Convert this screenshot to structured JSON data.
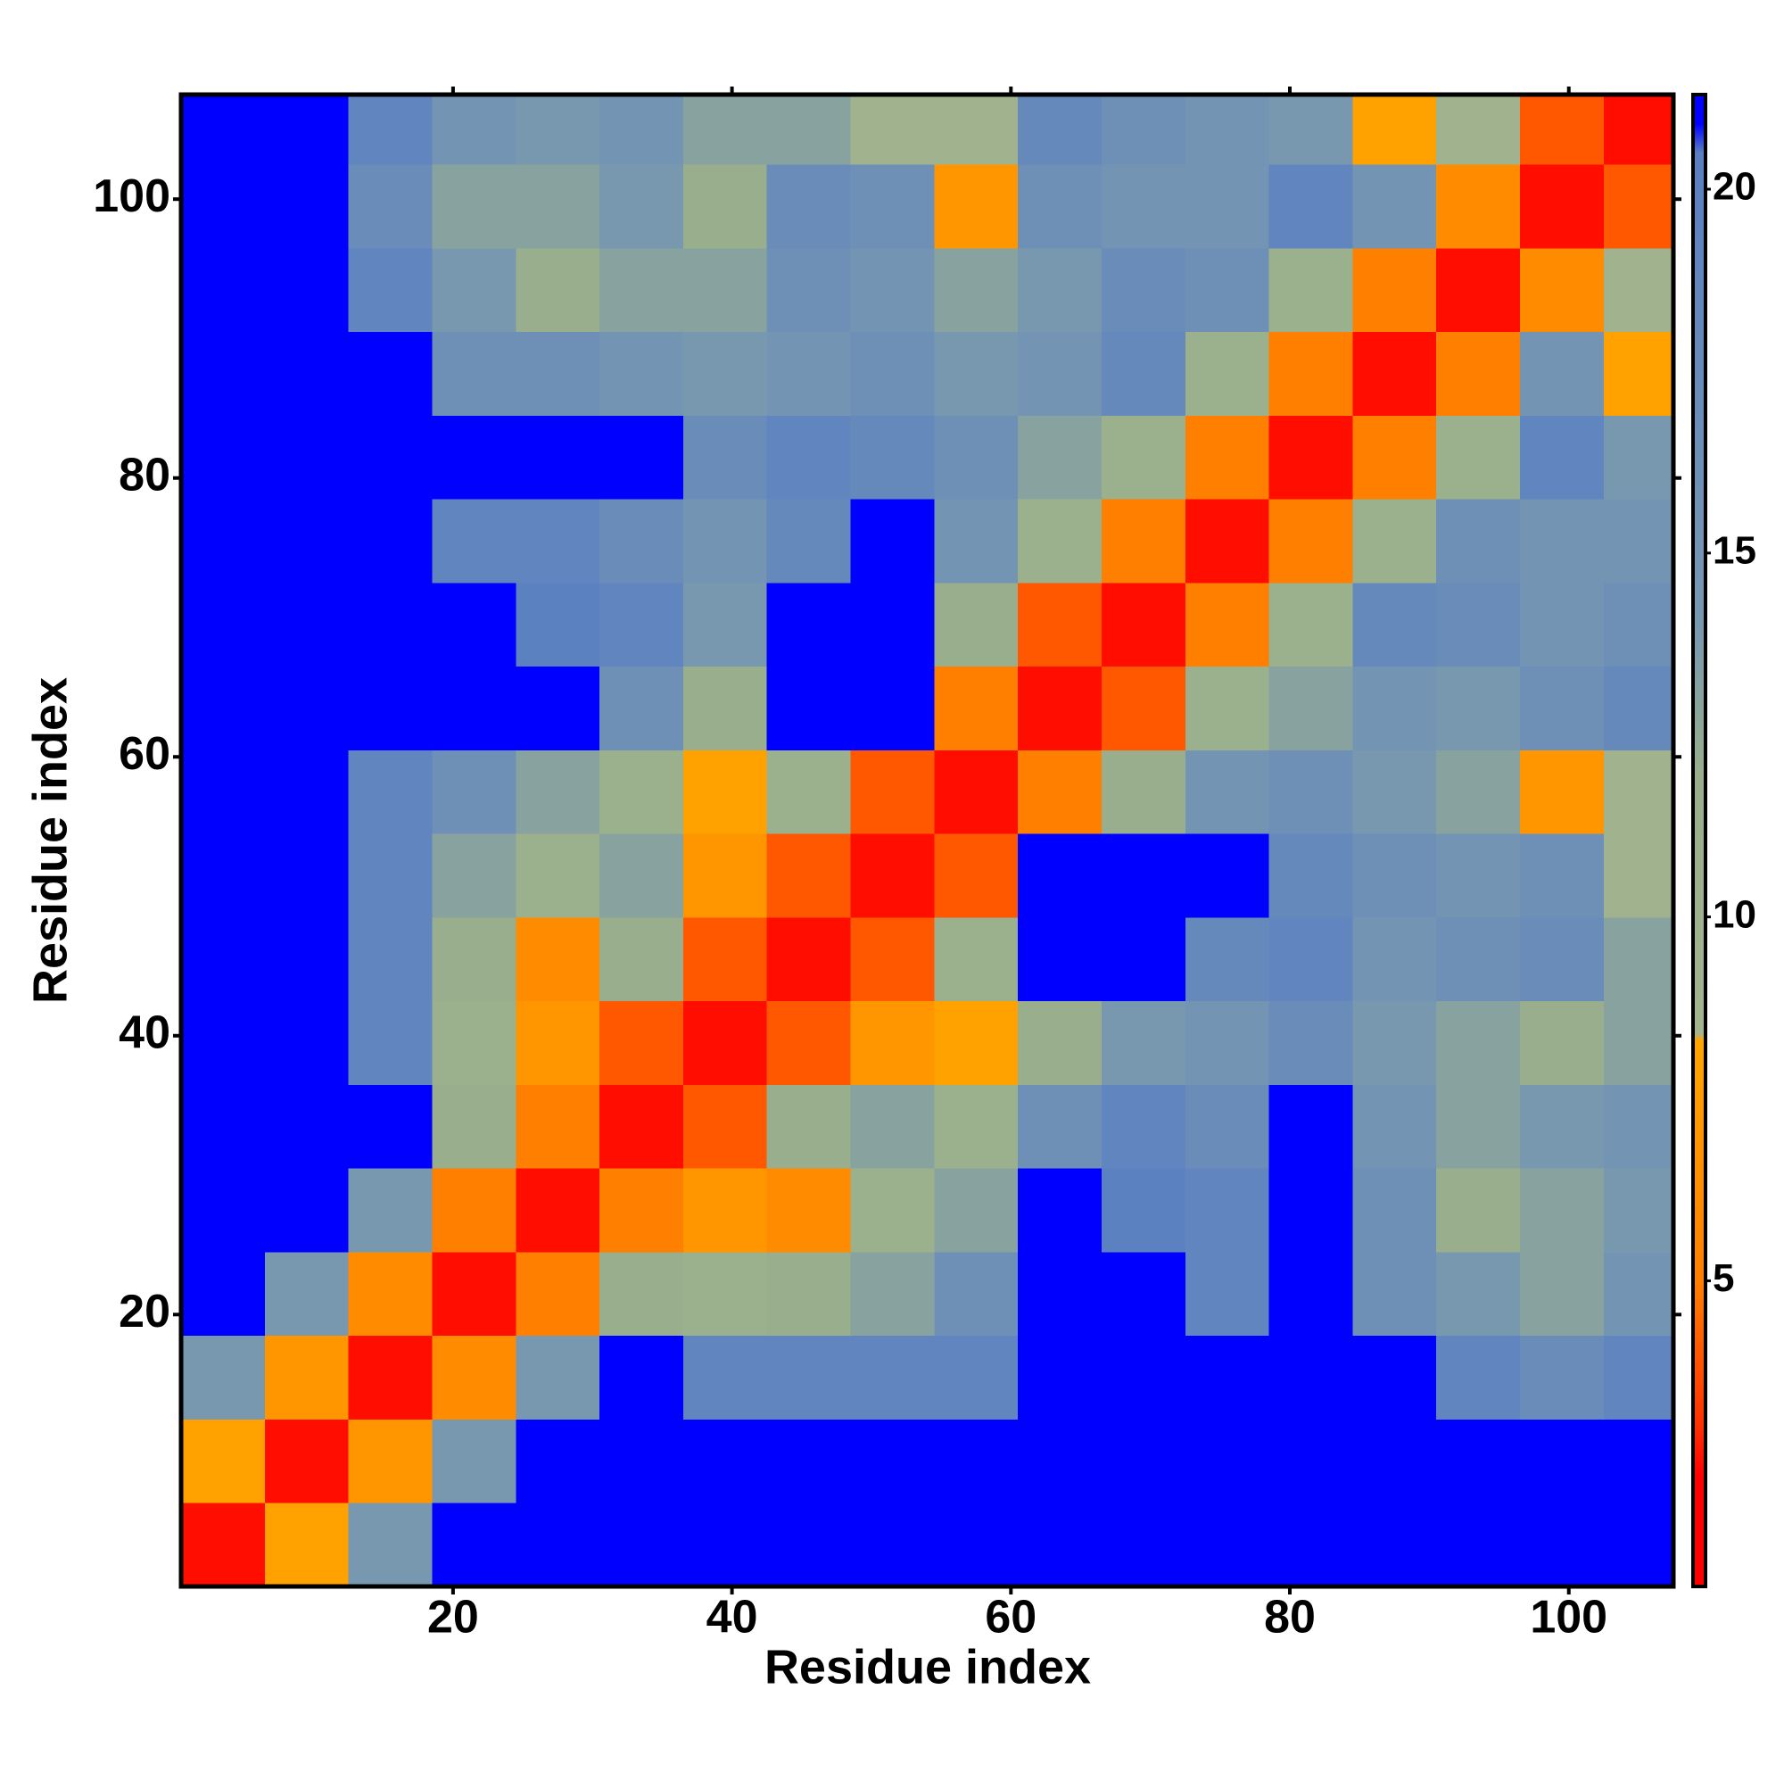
{
  "chart_data": {
    "type": "heatmap",
    "xlabel": "Residue index",
    "ylabel": "Residue index",
    "xbins": [
      0.5,
      6.5,
      12.5,
      18.5,
      24.5,
      30.5,
      36.5,
      42.5,
      48.5,
      54.5,
      60.5,
      66.5,
      72.5,
      78.5,
      84.5,
      90.5,
      96.5,
      102.5,
      107.5
    ],
    "ybins": [
      0.5,
      6.5,
      12.5,
      18.5,
      24.5,
      30.5,
      36.5,
      42.5,
      48.5,
      54.5,
      60.5,
      66.5,
      72.5,
      78.5,
      84.5,
      90.5,
      96.5,
      102.5,
      107.5
    ],
    "values": [
      [
        2.5,
        8,
        14,
        21,
        21,
        21,
        21,
        21,
        21,
        21,
        21,
        21,
        21,
        21,
        21,
        21,
        21,
        21
      ],
      [
        8,
        2.5,
        7,
        14,
        21,
        21,
        21,
        21,
        21,
        21,
        21,
        21,
        21,
        21,
        21,
        21,
        21,
        21
      ],
      [
        14,
        7,
        2.5,
        6,
        14,
        21,
        19,
        19,
        19,
        19,
        21,
        21,
        21,
        21,
        21,
        19,
        17,
        19
      ],
      [
        21,
        14,
        6,
        2.5,
        5,
        12,
        11,
        12,
        13,
        16,
        21,
        21,
        19,
        21,
        16,
        14,
        13,
        15
      ],
      [
        21,
        21,
        14,
        5,
        2.5,
        5,
        7,
        6,
        11,
        13,
        21,
        20,
        19,
        21,
        16,
        12,
        13,
        14
      ],
      [
        21,
        21,
        21,
        12,
        5,
        2.5,
        4,
        12,
        13,
        11,
        16,
        19,
        17,
        21,
        15,
        13,
        14,
        15
      ],
      [
        21,
        21,
        19,
        11,
        7,
        4,
        2.5,
        4,
        7,
        8,
        12,
        14,
        15,
        17,
        14,
        13,
        12,
        13
      ],
      [
        21,
        21,
        19,
        12,
        6,
        12,
        4,
        2.5,
        4,
        11,
        21,
        21,
        18,
        19,
        15,
        16,
        17,
        13
      ],
      [
        21,
        21,
        19,
        13,
        11,
        13,
        7,
        4,
        2.5,
        4,
        21,
        21,
        21,
        18,
        16,
        15,
        16,
        9
      ],
      [
        21,
        21,
        19,
        16,
        13,
        11,
        8,
        11,
        4,
        2.5,
        5,
        12,
        15,
        16,
        14,
        13,
        7,
        9
      ],
      [
        21,
        21,
        21,
        21,
        21,
        16,
        12,
        21,
        21,
        5,
        2.5,
        4,
        11,
        13,
        15,
        14,
        16,
        18
      ],
      [
        21,
        21,
        21,
        21,
        20,
        19,
        14,
        21,
        21,
        12,
        4,
        2.5,
        5,
        11,
        18,
        17,
        15,
        16
      ],
      [
        21,
        21,
        21,
        19,
        19,
        17,
        15,
        18,
        21,
        15,
        11,
        5,
        2.5,
        5,
        11,
        16,
        15,
        15
      ],
      [
        21,
        21,
        21,
        21,
        21,
        21,
        17,
        19,
        18,
        16,
        13,
        11,
        5,
        2.5,
        5,
        11,
        19,
        14
      ],
      [
        21,
        21,
        21,
        16,
        16,
        15,
        14,
        15,
        16,
        14,
        15,
        18,
        11,
        5,
        2.5,
        5,
        15,
        8
      ],
      [
        21,
        21,
        19,
        14,
        12,
        13,
        13,
        16,
        15,
        13,
        14,
        17,
        16,
        11,
        5,
        2.5,
        6,
        9
      ],
      [
        21,
        21,
        17,
        13,
        13,
        14,
        12,
        17,
        16,
        7,
        16,
        15,
        15,
        19,
        15,
        6,
        2.5,
        4
      ],
      [
        21,
        21,
        19,
        15,
        14,
        15,
        13,
        13,
        9,
        9,
        18,
        16,
        15,
        14,
        8,
        9,
        4,
        2.5
      ]
    ],
    "xlim": [
      0.5,
      107.5
    ],
    "ylim": [
      0.5,
      107.5
    ],
    "xticks": [
      20,
      40,
      60,
      80,
      100
    ],
    "yticks": [
      20,
      40,
      60,
      80,
      100
    ],
    "colorlim": [
      0.8,
      21.3
    ],
    "colorticks": [
      5,
      10,
      15,
      20
    ],
    "colorscale": [
      [
        0.8,
        "#ff0000"
      ],
      [
        2.3,
        "#ff0000"
      ],
      [
        3,
        "#ff3000"
      ],
      [
        5,
        "#ff7f00"
      ],
      [
        8.3,
        "#ffa500"
      ],
      [
        8.4,
        "#a3b48e"
      ],
      [
        12,
        "#98ae8d"
      ],
      [
        14,
        "#7898b0"
      ],
      [
        20.5,
        "#5a7fc2"
      ],
      [
        20.9,
        "#0000ff"
      ],
      [
        21.3,
        "#0000ff"
      ]
    ]
  }
}
